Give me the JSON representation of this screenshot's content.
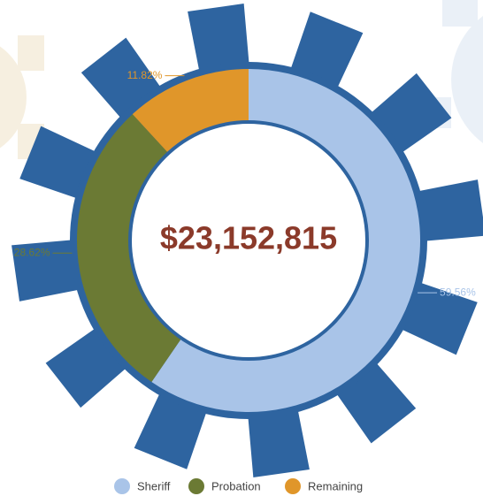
{
  "chart_data": {
    "type": "donut",
    "center_text": "$23,152,815",
    "categories": [
      "Sheriff",
      "Probation",
      "Remaining"
    ],
    "values": [
      59.56,
      28.62,
      11.82
    ],
    "value_labels": [
      "59.56%",
      "28.62%",
      "11.82%"
    ],
    "colors": [
      "#a9c4e8",
      "#6b7a34",
      "#e0962a"
    ],
    "legend": "bottom"
  }
}
